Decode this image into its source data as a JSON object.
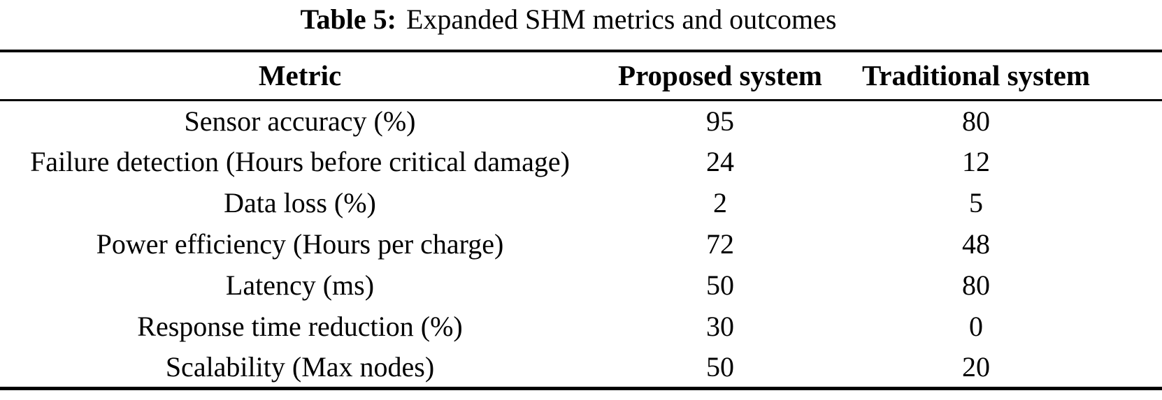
{
  "table": {
    "caption": {
      "label": "Table 5:",
      "text": "Expanded SHM metrics and outcomes"
    },
    "columns": {
      "metric": "Metric",
      "proposed": "Proposed system",
      "traditional": "Traditional system"
    },
    "rows": [
      {
        "metric": "Sensor accuracy (%)",
        "proposed": "95",
        "traditional": "80"
      },
      {
        "metric": "Failure detection (Hours before critical damage)",
        "proposed": "24",
        "traditional": "12"
      },
      {
        "metric": "Data loss (%)",
        "proposed": "2",
        "traditional": "5"
      },
      {
        "metric": "Power efficiency (Hours per charge)",
        "proposed": "72",
        "traditional": "48"
      },
      {
        "metric": "Latency (ms)",
        "proposed": "50",
        "traditional": "80"
      },
      {
        "metric": "Response time reduction (%)",
        "proposed": "30",
        "traditional": "0"
      },
      {
        "metric": "Scalability (Max nodes)",
        "proposed": "50",
        "traditional": "20"
      }
    ],
    "colors": {
      "text": "#000000",
      "background": "#ffffff",
      "rule": "#000000"
    }
  }
}
